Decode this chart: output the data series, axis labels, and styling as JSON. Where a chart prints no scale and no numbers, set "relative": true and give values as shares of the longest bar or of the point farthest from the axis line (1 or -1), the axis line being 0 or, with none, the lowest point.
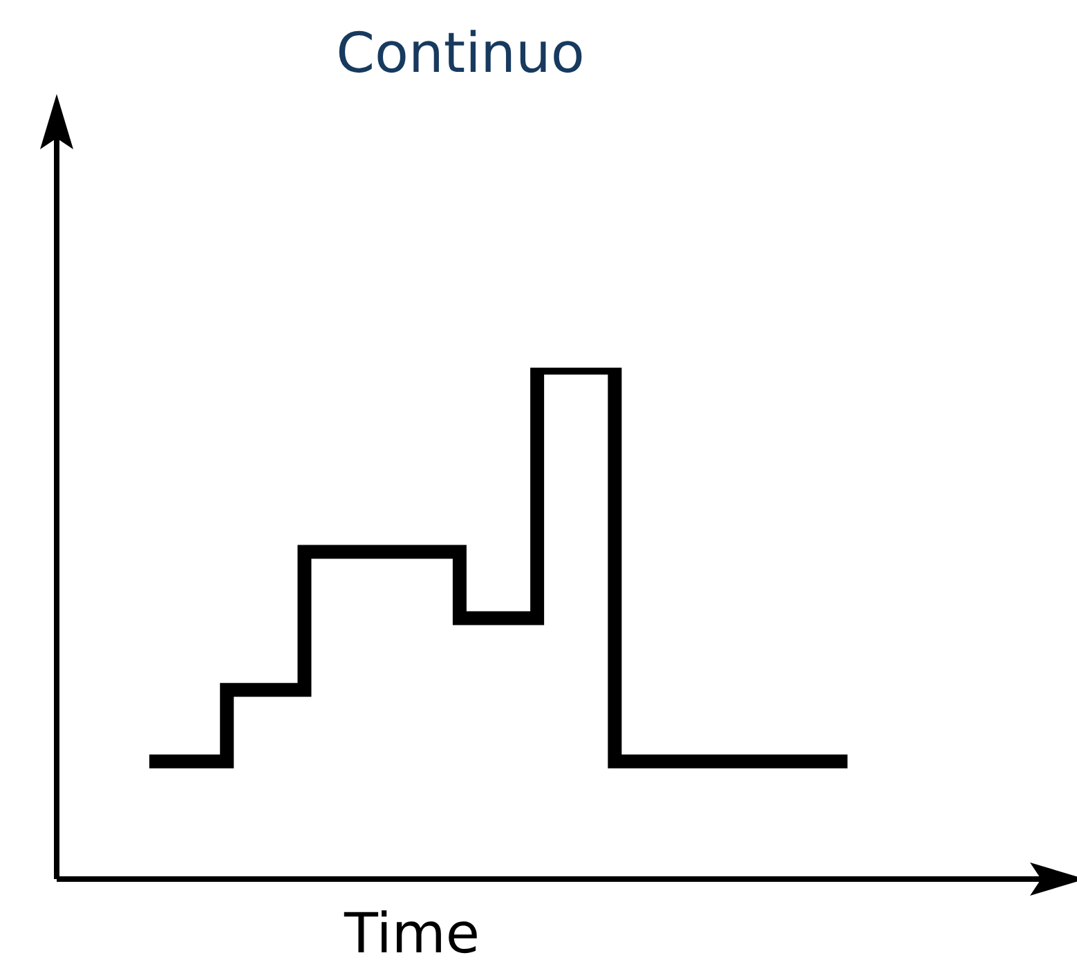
{
  "chart_data": {
    "type": "step",
    "title": "Continuo",
    "xlabel": "Time",
    "relative": true,
    "categories": [
      null,
      null,
      null,
      null,
      null,
      null,
      null,
      null,
      null,
      null
    ],
    "series": [
      {
        "color": "#000000",
        "values": [
          0.23,
          0.23,
          0.37,
          0.64,
          0.64,
          0.51,
          1,
          0.23,
          0.23,
          0.23
        ]
      }
    ]
  }
}
